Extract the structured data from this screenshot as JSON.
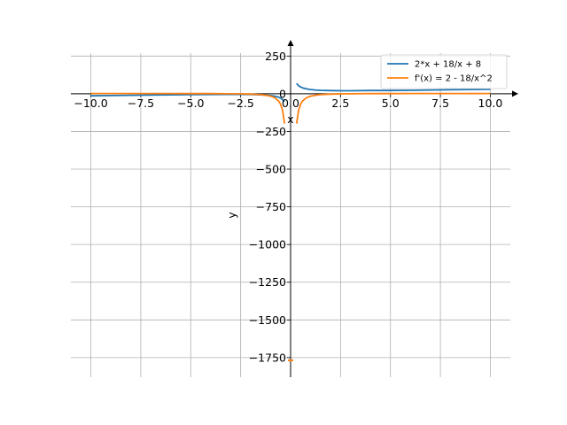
{
  "chart_data": {
    "type": "line",
    "xlim": [
      -11.0,
      11.0
    ],
    "ylim": [
      -1880,
      340
    ],
    "xticks": [
      -10.0,
      -7.5,
      -5.0,
      -2.5,
      0.0,
      2.5,
      5.0,
      7.5,
      10.0
    ],
    "yticks": [
      250,
      0,
      -250,
      -500,
      -750,
      -1000,
      -1250,
      -1500,
      -1750
    ],
    "xtick_labels": [
      "−10.0",
      "−7.5",
      "−5.0",
      "−2.5",
      "0.0",
      "2.5",
      "5.0",
      "7.5",
      "10.0"
    ],
    "ytick_labels": [
      "250",
      "0",
      "−250",
      "−500",
      "−750",
      "−1000",
      "−1250",
      "−1500",
      "−1750"
    ],
    "xlabel": "x",
    "ylabel": "y",
    "grid": true,
    "legend_position": "upper right",
    "series": [
      {
        "name": "2*x + 18/x + 8",
        "color": "#1f77b4",
        "x": [
          -10,
          -8,
          -6,
          -5,
          -4,
          -3,
          -2.5,
          -2,
          -1.5,
          -1.2,
          -1,
          -0.8,
          -0.6,
          -0.5,
          -0.4,
          -0.3,
          0.3,
          0.4,
          0.5,
          0.6,
          0.8,
          1,
          1.2,
          1.5,
          2,
          2.5,
          3,
          4,
          5,
          6,
          8,
          10
        ],
        "y": [
          -13.8,
          -10.25,
          -7,
          -5.6,
          -4.5,
          -4,
          -4.2,
          -5,
          -7,
          -9.4,
          -12,
          -16.1,
          -23.2,
          -28,
          -38.8,
          -52.6,
          68.6,
          53.8,
          45,
          39.2,
          32.1,
          28,
          25.4,
          23,
          21,
          20.2,
          20,
          21.5,
          21.6,
          23,
          26.25,
          29.8
        ]
      },
      {
        "name": "f'(x) = 2 - 18/x^2",
        "color": "#ff7f0e",
        "x": [
          -10,
          -8,
          -6,
          -5,
          -4,
          -3,
          -2.5,
          -2,
          -1.5,
          -1.2,
          -1,
          -0.8,
          -0.6,
          -0.5,
          -0.4,
          -0.3,
          0.3,
          0.4,
          0.5,
          0.6,
          0.8,
          1,
          1.2,
          1.5,
          2,
          2.5,
          3,
          4,
          5,
          6,
          8,
          10
        ],
        "y": [
          1.82,
          1.72,
          1.5,
          1.28,
          0.875,
          0,
          -0.88,
          -2.5,
          -6,
          -10.5,
          -16,
          -26.1,
          -48,
          -70,
          -110.5,
          -198,
          -198,
          -110.5,
          -70,
          -48,
          -26.1,
          -16,
          -10.5,
          -6,
          -2.5,
          -0.88,
          0,
          0.875,
          1.28,
          1.5,
          1.72,
          1.82
        ]
      }
    ],
    "annotations": [
      {
        "x": 0.0,
        "y": -1768,
        "color": "#ff7f0e",
        "kind": "marker"
      }
    ]
  }
}
